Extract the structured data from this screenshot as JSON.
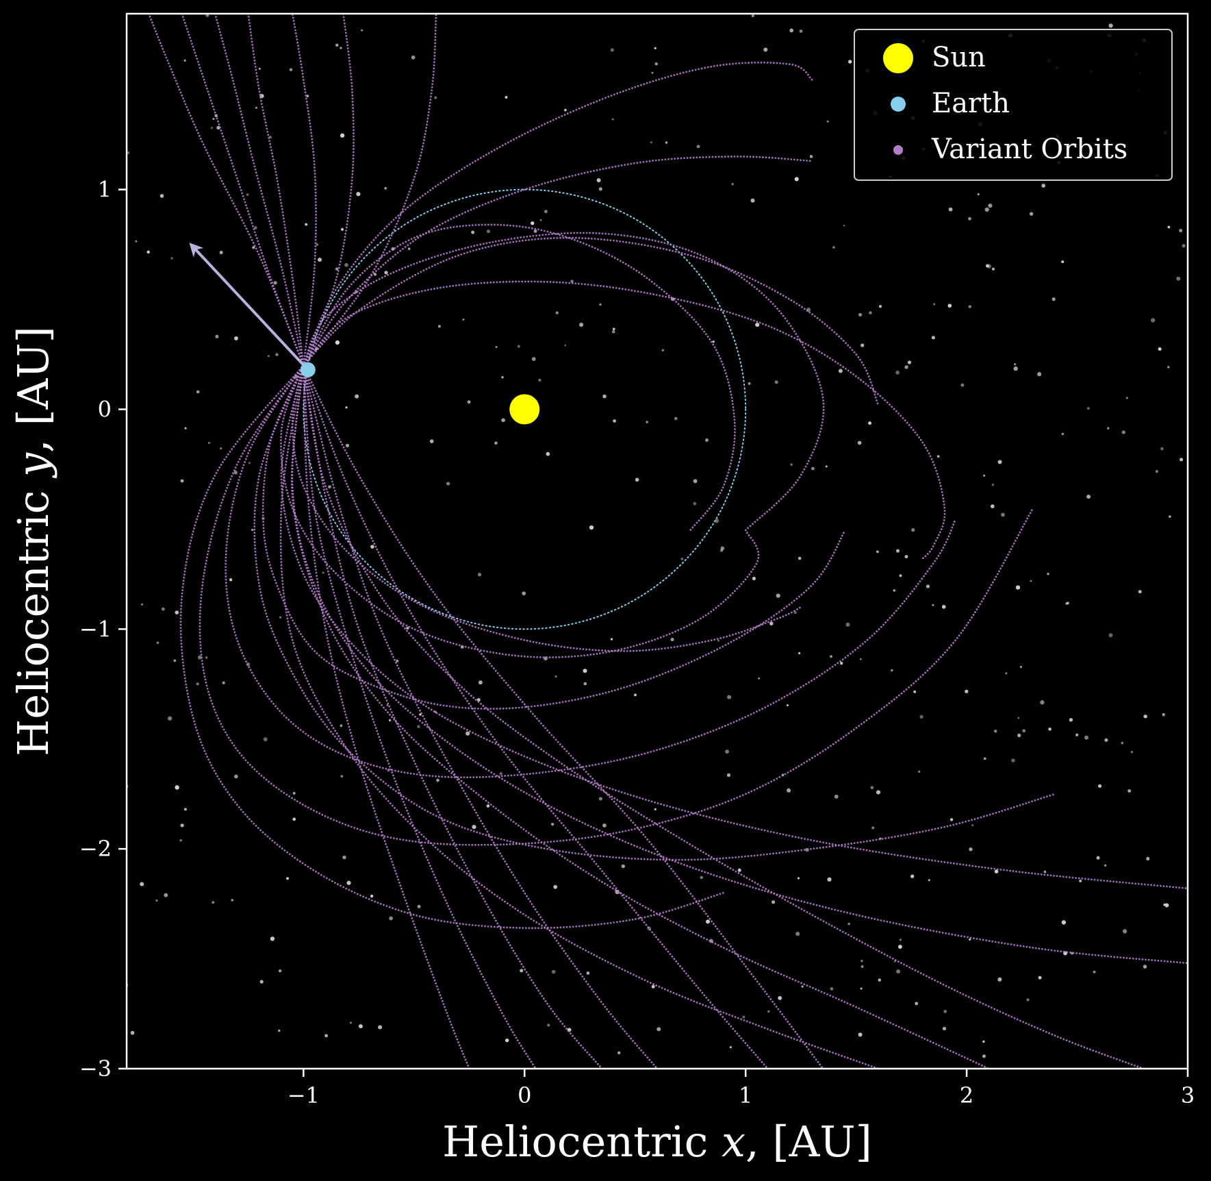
{
  "chart_data": {
    "type": "scatter",
    "title": "",
    "xlabel": "Heliocentric x, [AU]",
    "ylabel": "Heliocentric y, [AU]",
    "xlabel_parts": {
      "pre": "Heliocentric ",
      "var": "x",
      "post": ", [AU]"
    },
    "ylabel_parts": {
      "pre": "Heliocentric ",
      "var": "y",
      "post": ", [AU]"
    },
    "xlim": [
      -1.8,
      3.0
    ],
    "ylim": [
      -3.0,
      1.8
    ],
    "x_ticks": [
      -1,
      0,
      1,
      2,
      3
    ],
    "y_ticks": [
      -3,
      -2,
      -1,
      0,
      1
    ],
    "x_tick_labels": [
      "−1",
      "0",
      "1",
      "2",
      "3"
    ],
    "y_tick_labels": [
      "−3",
      "−2",
      "−1",
      "0",
      "1"
    ],
    "grid": false,
    "background": "black starfield",
    "legend": {
      "location": "top-right",
      "entries": [
        {
          "label": "Sun",
          "color": "#ffff00",
          "marker": "large-circle"
        },
        {
          "label": "Earth",
          "color": "#87ceeb",
          "marker": "circle"
        },
        {
          "label": "Variant Orbits",
          "color": "#b07cc6",
          "marker": "small-dot"
        }
      ]
    },
    "sun": {
      "x": 0.0,
      "y": 0.0,
      "color": "#ffff00"
    },
    "earth": {
      "x": -0.98,
      "y": 0.18,
      "color": "#87ceeb"
    },
    "earth_orbit": {
      "radius": 1.0,
      "color": "#87ceeb",
      "style": "dotted"
    },
    "velocity_arrow": {
      "x0": -0.98,
      "y0": 0.18,
      "x1": -1.5,
      "y1": 0.74,
      "color": "#b9b1de"
    },
    "variant_orbits_color": "#b07cc6",
    "variant_orbits": [
      {
        "x": [
          -1.0,
          -0.85,
          -0.55,
          -0.1,
          0.4,
          0.85,
          1.2,
          1.3
        ],
        "y": [
          0.2,
          0.55,
          0.9,
          1.2,
          1.43,
          1.56,
          1.57,
          1.5
        ]
      },
      {
        "x": [
          -1.0,
          -0.8,
          -0.45,
          0.0,
          0.5,
          0.95,
          1.3
        ],
        "y": [
          0.2,
          0.5,
          0.8,
          1.0,
          1.12,
          1.15,
          1.13
        ]
      },
      {
        "x": [
          -1.0,
          -0.75,
          -0.3,
          0.2,
          0.75,
          1.2,
          1.5,
          1.6
        ],
        "y": [
          0.2,
          0.45,
          0.7,
          0.78,
          0.7,
          0.5,
          0.25,
          0.02
        ]
      },
      {
        "x": [
          -1.0,
          -0.8,
          -0.4,
          0.1,
          0.6,
          1.1,
          1.5,
          1.8,
          1.9,
          1.85,
          1.8
        ],
        "y": [
          0.2,
          0.42,
          0.55,
          0.58,
          0.52,
          0.38,
          0.15,
          -0.15,
          -0.45,
          -0.62,
          -0.68
        ]
      },
      {
        "x": [
          -1.0,
          -0.9,
          -0.6,
          -0.15,
          0.35,
          0.8,
          1.15,
          1.35,
          1.25,
          1.0
        ],
        "y": [
          0.2,
          0.42,
          0.62,
          0.76,
          0.8,
          0.7,
          0.45,
          0.05,
          -0.3,
          -0.55
        ]
      },
      {
        "x": [
          -1.0,
          -1.05,
          -1.0,
          -0.8,
          -0.45,
          0.0,
          0.45,
          0.85,
          1.15,
          1.25
        ],
        "y": [
          0.2,
          -0.05,
          -0.35,
          -0.65,
          -0.9,
          -1.05,
          -1.1,
          -1.05,
          -0.95,
          -0.9
        ]
      },
      {
        "x": [
          -1.0,
          -1.1,
          -1.05,
          -0.85,
          -0.5,
          -0.05,
          0.4,
          0.8,
          1.05,
          1.0
        ],
        "y": [
          0.2,
          -0.1,
          -0.45,
          -0.75,
          -1.0,
          -1.12,
          -1.1,
          -0.95,
          -0.7,
          -0.55
        ]
      },
      {
        "x": [
          -1.0,
          -0.8,
          -0.5,
          -0.15,
          0.2,
          0.55,
          0.85,
          0.95,
          0.9,
          0.75
        ],
        "y": [
          0.2,
          0.55,
          0.78,
          0.84,
          0.78,
          0.6,
          0.3,
          -0.05,
          -0.35,
          -0.55
        ]
      },
      {
        "x": [
          -1.0,
          -1.15,
          -1.18,
          -1.1,
          -0.95,
          -0.7,
          -0.35,
          0.05,
          0.5,
          0.95,
          1.3,
          1.45
        ],
        "y": [
          0.2,
          -0.15,
          -0.55,
          -0.85,
          -1.1,
          -1.25,
          -1.35,
          -1.35,
          -1.25,
          -1.05,
          -0.8,
          -0.55
        ]
      },
      {
        "x": [
          -1.0,
          -1.25,
          -1.35,
          -1.3,
          -1.1,
          -0.8,
          -0.4,
          0.1,
          0.6,
          1.1,
          1.55,
          1.85,
          1.95
        ],
        "y": [
          0.2,
          -0.2,
          -0.65,
          -1.05,
          -1.38,
          -1.58,
          -1.67,
          -1.65,
          -1.55,
          -1.35,
          -1.05,
          -0.7,
          -0.5
        ]
      },
      {
        "x": [
          -1.0,
          -1.3,
          -1.45,
          -1.45,
          -1.3,
          -1.0,
          -0.6,
          -0.1,
          0.45,
          1.0,
          1.5,
          1.95,
          2.3
        ],
        "y": [
          0.2,
          -0.25,
          -0.75,
          -1.2,
          -1.55,
          -1.8,
          -1.95,
          -1.98,
          -1.92,
          -1.75,
          -1.45,
          -1.05,
          -0.45
        ]
      },
      {
        "x": [
          -1.0,
          -1.4,
          -1.55,
          -1.5,
          -1.3,
          -0.95,
          -0.5,
          0.0,
          0.5,
          0.9
        ],
        "y": [
          0.2,
          -0.3,
          -0.85,
          -1.4,
          -1.8,
          -2.1,
          -2.3,
          -2.36,
          -2.32,
          -2.2
        ]
      },
      {
        "x": [
          -1.0,
          -1.2,
          -1.2,
          -1.05,
          -0.8,
          -0.4,
          0.1,
          0.7,
          1.3,
          1.9,
          2.4
        ],
        "y": [
          0.2,
          -0.3,
          -0.8,
          -1.2,
          -1.55,
          -1.85,
          -2.0,
          -2.05,
          -2.0,
          -1.9,
          -1.75
        ]
      },
      {
        "x": [
          -1.0,
          -1.1,
          -1.0,
          -0.75,
          -0.4,
          0.1,
          0.7,
          1.4,
          2.2,
          3.0
        ],
        "y": [
          0.2,
          -0.3,
          -0.75,
          -1.1,
          -1.38,
          -1.62,
          -1.82,
          -1.98,
          -2.1,
          -2.18
        ]
      },
      {
        "x": [
          -1.0,
          -1.05,
          -0.95,
          -0.7,
          -0.3,
          0.2,
          0.8,
          1.5,
          2.3,
          3.0
        ],
        "y": [
          0.2,
          -0.35,
          -0.8,
          -1.2,
          -1.55,
          -1.85,
          -2.1,
          -2.3,
          -2.45,
          -2.52
        ]
      },
      {
        "x": [
          -1.0,
          -1.05,
          -0.9,
          -0.6,
          -0.15,
          0.35,
          0.9,
          1.5,
          2.1
        ],
        "y": [
          0.2,
          -0.4,
          -0.95,
          -1.4,
          -1.8,
          -2.15,
          -2.45,
          -2.72,
          -3.0
        ]
      },
      {
        "x": [
          -1.0,
          -1.1,
          -1.05,
          -0.8,
          -0.45,
          0.0,
          0.55,
          1.1,
          1.6
        ],
        "y": [
          0.2,
          -0.45,
          -1.05,
          -1.55,
          -1.95,
          -2.3,
          -2.6,
          -2.82,
          -3.0
        ]
      },
      {
        "x": [
          -1.0,
          -0.9,
          -0.65,
          -0.3,
          0.15,
          0.7,
          1.3,
          1.9,
          2.4,
          2.8
        ],
        "y": [
          0.2,
          -0.35,
          -0.85,
          -1.25,
          -1.6,
          -1.95,
          -2.3,
          -2.62,
          -2.85,
          -3.0
        ]
      },
      {
        "x": [
          -1.0,
          -1.2,
          -1.45,
          -1.6,
          -1.7
        ],
        "y": [
          0.2,
          0.7,
          1.2,
          1.55,
          1.8
        ]
      },
      {
        "x": [
          -1.0,
          -1.15,
          -1.3,
          -1.45,
          -1.55
        ],
        "y": [
          0.2,
          0.6,
          1.05,
          1.5,
          1.8
        ]
      },
      {
        "x": [
          -1.0,
          -1.1,
          -1.22,
          -1.32,
          -1.4
        ],
        "y": [
          0.2,
          0.65,
          1.1,
          1.5,
          1.8
        ]
      },
      {
        "x": [
          -1.0,
          -1.05,
          -1.12,
          -1.2,
          -1.25
        ],
        "y": [
          0.2,
          0.6,
          1.05,
          1.45,
          1.8
        ]
      },
      {
        "x": [
          -1.0,
          -0.95,
          -0.95,
          -1.0,
          -1.05
        ],
        "y": [
          0.2,
          0.65,
          1.1,
          1.5,
          1.8
        ]
      },
      {
        "x": [
          -1.0,
          -0.85,
          -0.78,
          -0.78,
          -0.82
        ],
        "y": [
          0.2,
          0.6,
          1.05,
          1.45,
          1.8
        ]
      },
      {
        "x": [
          -1.0,
          -0.7,
          -0.5,
          -0.42,
          -0.4
        ],
        "y": [
          0.2,
          0.6,
          1.05,
          1.45,
          1.8
        ]
      },
      {
        "x": [
          -1.0,
          -0.9,
          -0.75,
          -0.5,
          -0.2,
          0.1,
          0.35
        ],
        "y": [
          0.2,
          -0.4,
          -1.0,
          -1.6,
          -2.2,
          -2.7,
          -3.0
        ]
      },
      {
        "x": [
          -1.0,
          -0.95,
          -0.8,
          -0.6,
          -0.35,
          -0.1,
          0.05
        ],
        "y": [
          0.2,
          -0.45,
          -1.05,
          -1.65,
          -2.25,
          -2.75,
          -3.0
        ]
      },
      {
        "x": [
          -1.0,
          -0.98,
          -0.9,
          -0.75,
          -0.55,
          -0.35,
          -0.25
        ],
        "y": [
          0.2,
          -0.4,
          -1.0,
          -1.6,
          -2.2,
          -2.75,
          -3.0
        ]
      },
      {
        "x": [
          -1.0,
          -0.85,
          -0.65,
          -0.35,
          0.0,
          0.35,
          0.6
        ],
        "y": [
          0.2,
          -0.4,
          -1.0,
          -1.6,
          -2.2,
          -2.7,
          -3.0
        ]
      },
      {
        "x": [
          -1.0,
          -0.8,
          -0.5,
          -0.1,
          0.35,
          0.8,
          1.1
        ],
        "y": [
          0.2,
          -0.35,
          -0.95,
          -1.55,
          -2.1,
          -2.65,
          -3.0
        ]
      },
      {
        "x": [
          -1.0,
          -0.75,
          -0.4,
          0.05,
          0.55,
          1.05,
          1.35
        ],
        "y": [
          0.2,
          -0.3,
          -0.85,
          -1.4,
          -1.95,
          -2.6,
          -3.0
        ]
      }
    ]
  }
}
